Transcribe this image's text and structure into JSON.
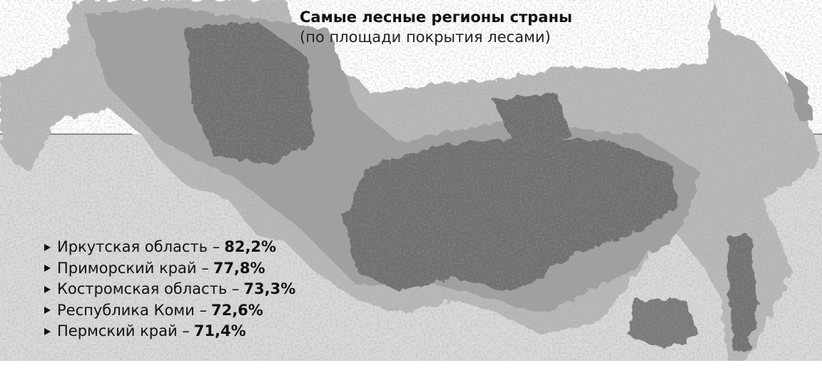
{
  "header": {
    "title": "Самые лесные регионы страны",
    "subtitle": "(по площади покрытия лесами)"
  },
  "list": [
    {
      "name": "Иркутская область –",
      "value": "82,2%"
    },
    {
      "name": "Приморский край –",
      "value": "77,8%"
    },
    {
      "name": "Костромская область –",
      "value": "73,3%"
    },
    {
      "name": "Республика Коми –",
      "value": "72,6%"
    },
    {
      "name": "Пермский край –",
      "value": "71,4%"
    }
  ]
}
